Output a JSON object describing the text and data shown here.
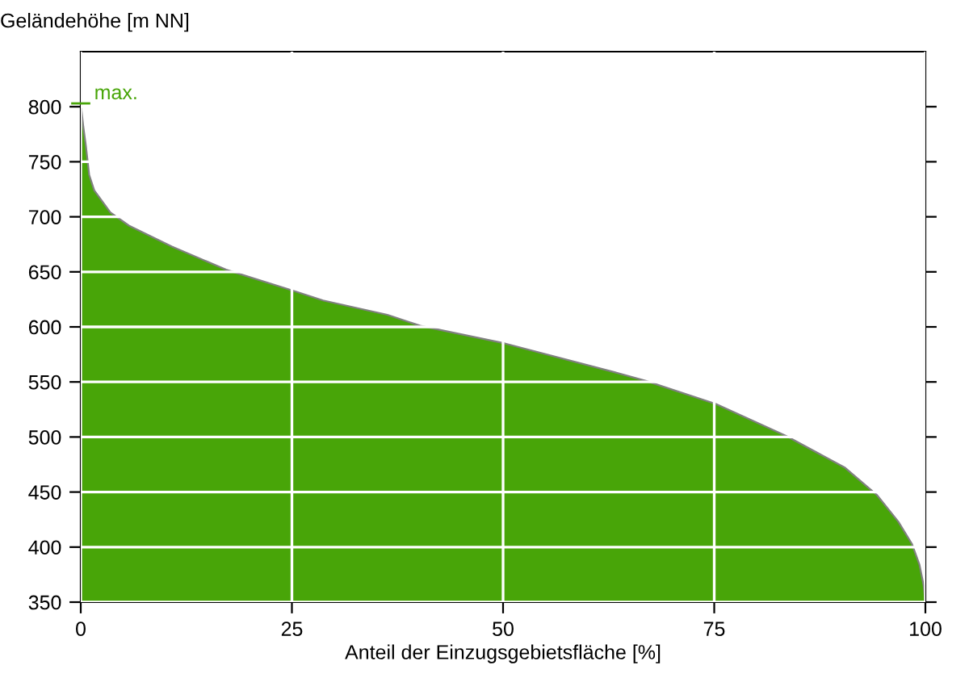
{
  "chart_data": {
    "type": "area",
    "xlabel": "Anteil der Einzugsgebietsfläche [%]",
    "ylabel": "Geländehöhe [m NN]",
    "series": [
      {
        "color": "#48a508",
        "x": [
          0,
          0.3,
          0.6,
          1,
          1.6,
          3.5,
          5.7,
          10.8,
          17.2,
          25.1,
          28.7,
          36.3,
          40.2,
          50.2,
          63.1,
          66.9,
          75.2,
          83.5,
          90.5,
          94.3,
          96.8,
          98.4,
          99.3,
          99.8,
          100
        ],
        "values": [
          803,
          782,
          765,
          738,
          724,
          704,
          692,
          673,
          652,
          633,
          624,
          611,
          601,
          585,
          559,
          551,
          530,
          501,
          472,
          447,
          423,
          403,
          384,
          365,
          350
        ]
      }
    ],
    "annotations": [
      {
        "text": "max.",
        "x": 0,
        "y": 803
      }
    ],
    "xlim": [
      0,
      100
    ],
    "xticks": [
      0,
      25,
      50,
      75,
      100
    ],
    "ylim": [
      350,
      850
    ],
    "yticks": [
      350,
      400,
      450,
      500,
      550,
      600,
      650,
      700,
      750,
      800
    ],
    "grid": true,
    "legend": false
  }
}
